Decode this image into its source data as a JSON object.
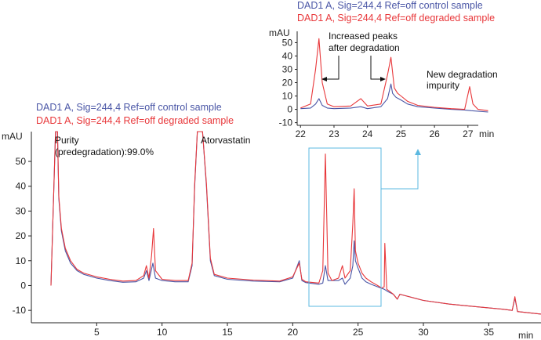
{
  "colors": {
    "control": "#4a56a6",
    "degraded": "#e8373a",
    "zoom_box": "#5bb8e0",
    "axis": "#222222"
  },
  "chart_data": [
    {
      "type": "line",
      "xlabel": "min",
      "ylabel": "mAU",
      "xlim": [
        0,
        39
      ],
      "ylim": [
        -15,
        62
      ],
      "x_ticks": [
        "5",
        "10",
        "15",
        "20",
        "25",
        "30",
        "35"
      ],
      "y_ticks": [
        "-10",
        "0",
        "10",
        "20",
        "30",
        "40",
        "50"
      ],
      "legend": [
        "DAD1 A, Sig=244,4 Ref=off control sample",
        "DAD1 A, Sig=244,4 Ref=off degraded sample"
      ],
      "annotations": {
        "purity_line1": "Purity",
        "purity_line2": "(predegradation):99.0%",
        "main_peak": "Atorvastatin"
      },
      "series": [
        {
          "name": "DAD1 A, Sig=244,4 Ref=off control sample",
          "points": [
            [
              1.5,
              0
            ],
            [
              1.85,
              62
            ],
            [
              2.0,
              62
            ],
            [
              2.1,
              35
            ],
            [
              2.3,
              22
            ],
            [
              2.6,
              14
            ],
            [
              3.0,
              9
            ],
            [
              3.5,
              6
            ],
            [
              4.0,
              4.5
            ],
            [
              5.0,
              3
            ],
            [
              6.0,
              2
            ],
            [
              7.0,
              1.3
            ],
            [
              8.0,
              1.5
            ],
            [
              8.6,
              3
            ],
            [
              8.8,
              6
            ],
            [
              9.0,
              2
            ],
            [
              9.3,
              9
            ],
            [
              9.5,
              3
            ],
            [
              10.0,
              2
            ],
            [
              11.0,
              1.5
            ],
            [
              12.0,
              1.5
            ],
            [
              12.3,
              8
            ],
            [
              12.5,
              40
            ],
            [
              12.7,
              62
            ],
            [
              13.1,
              62
            ],
            [
              13.4,
              40
            ],
            [
              13.7,
              10
            ],
            [
              14.0,
              4
            ],
            [
              15.0,
              2.5
            ],
            [
              17.0,
              1.8
            ],
            [
              19.0,
              1.5
            ],
            [
              20.0,
              3
            ],
            [
              20.5,
              10
            ],
            [
              20.7,
              2
            ],
            [
              21.0,
              1.2
            ],
            [
              22.0,
              0.5
            ],
            [
              22.3,
              1
            ],
            [
              22.5,
              8
            ],
            [
              22.7,
              2
            ],
            [
              23.5,
              2
            ],
            [
              23.8,
              3
            ],
            [
              24.0,
              0.5
            ],
            [
              24.4,
              3
            ],
            [
              24.6,
              8
            ],
            [
              24.7,
              18
            ],
            [
              24.8,
              10
            ],
            [
              25.0,
              7
            ],
            [
              25.3,
              3
            ],
            [
              25.6,
              1.5
            ],
            [
              26.0,
              0.5
            ],
            [
              26.5,
              -0.5
            ],
            [
              27.0,
              -1.5
            ],
            [
              27.3,
              -2.5
            ],
            [
              27.7,
              -3.5
            ],
            [
              28.0,
              -5.5
            ],
            [
              28.2,
              -3.5
            ],
            [
              30.0,
              -6
            ],
            [
              32.0,
              -7.5
            ],
            [
              34.0,
              -8.5
            ],
            [
              36.0,
              -9.5
            ],
            [
              36.8,
              -10
            ],
            [
              37.0,
              -5
            ],
            [
              37.2,
              -10.5
            ],
            [
              39.0,
              -11.5
            ]
          ]
        },
        {
          "name": "DAD1 A, Sig=244,4 Ref=off degraded sample",
          "points": [
            [
              1.5,
              0
            ],
            [
              1.85,
              62
            ],
            [
              2.0,
              62
            ],
            [
              2.1,
              36
            ],
            [
              2.3,
              23
            ],
            [
              2.6,
              15
            ],
            [
              3.0,
              10
            ],
            [
              3.5,
              6.5
            ],
            [
              4.0,
              5
            ],
            [
              5.0,
              3.5
            ],
            [
              6.0,
              2.5
            ],
            [
              7.0,
              1.8
            ],
            [
              8.0,
              2
            ],
            [
              8.6,
              4
            ],
            [
              8.8,
              8
            ],
            [
              9.0,
              3
            ],
            [
              9.2,
              12
            ],
            [
              9.35,
              23
            ],
            [
              9.5,
              6
            ],
            [
              10.0,
              2.5
            ],
            [
              11.0,
              2
            ],
            [
              12.0,
              2
            ],
            [
              12.3,
              9
            ],
            [
              12.5,
              41
            ],
            [
              12.7,
              62
            ],
            [
              13.1,
              62
            ],
            [
              13.4,
              41
            ],
            [
              13.7,
              11
            ],
            [
              14.0,
              4.5
            ],
            [
              15.0,
              3
            ],
            [
              17.0,
              2.2
            ],
            [
              19.0,
              1.8
            ],
            [
              20.0,
              3.5
            ],
            [
              20.5,
              9
            ],
            [
              20.7,
              2.5
            ],
            [
              21.0,
              1.5
            ],
            [
              22.0,
              1
            ],
            [
              22.3,
              6
            ],
            [
              22.5,
              53
            ],
            [
              22.7,
              5
            ],
            [
              23.0,
              2
            ],
            [
              23.5,
              3
            ],
            [
              23.8,
              8
            ],
            [
              24.0,
              3
            ],
            [
              24.4,
              6
            ],
            [
              24.6,
              25
            ],
            [
              24.7,
              39
            ],
            [
              24.8,
              14
            ],
            [
              25.0,
              9
            ],
            [
              25.3,
              5
            ],
            [
              25.6,
              3
            ],
            [
              26.0,
              1.5
            ],
            [
              26.5,
              0
            ],
            [
              26.8,
              -1
            ],
            [
              27.0,
              -0.5
            ],
            [
              27.05,
              17
            ],
            [
              27.2,
              -1.5
            ],
            [
              27.7,
              -3.5
            ],
            [
              28.0,
              -5.5
            ],
            [
              28.2,
              -3.5
            ],
            [
              30.0,
              -6
            ],
            [
              32.0,
              -7.5
            ],
            [
              34.0,
              -8.5
            ],
            [
              36.0,
              -9.5
            ],
            [
              36.8,
              -10
            ],
            [
              37.0,
              -4.5
            ],
            [
              37.2,
              -10.5
            ],
            [
              39.0,
              -11.5
            ]
          ]
        }
      ]
    },
    {
      "type": "line",
      "xlabel": "min",
      "ylabel": "mAU",
      "xlim": [
        21.9,
        27.8
      ],
      "ylim": [
        -12,
        62
      ],
      "x_ticks": [
        "22",
        "23",
        "24",
        "25",
        "26",
        "27"
      ],
      "y_ticks": [
        "-10",
        "0",
        "10",
        "20",
        "30",
        "40",
        "50"
      ],
      "legend": [
        "DAD1 A, Sig=244,4 Ref=off control sample",
        "DAD1 A, Sig=244,4 Ref=off degraded sample"
      ],
      "annotations": {
        "increased_line1": "Increased peaks",
        "increased_line2": "after degradation",
        "new_line1": "New degradation",
        "new_line2": "impurity"
      },
      "series": [
        {
          "name": "DAD1 A, Sig=244,4 Ref=off control sample",
          "points": [
            [
              22.0,
              0.5
            ],
            [
              22.3,
              1
            ],
            [
              22.45,
              4
            ],
            [
              22.55,
              8
            ],
            [
              22.65,
              3
            ],
            [
              22.8,
              1
            ],
            [
              23.0,
              0.5
            ],
            [
              23.5,
              1
            ],
            [
              23.8,
              2
            ],
            [
              24.0,
              0.5
            ],
            [
              24.4,
              2
            ],
            [
              24.6,
              8
            ],
            [
              24.7,
              19
            ],
            [
              24.75,
              12
            ],
            [
              24.85,
              9
            ],
            [
              25.0,
              7
            ],
            [
              25.2,
              4
            ],
            [
              25.5,
              2
            ],
            [
              26.0,
              1
            ],
            [
              26.5,
              0
            ],
            [
              26.9,
              -0.5
            ],
            [
              27.1,
              -1
            ],
            [
              27.6,
              -2
            ]
          ]
        },
        {
          "name": "DAD1 A, Sig=244,4 Ref=off degraded sample",
          "points": [
            [
              22.0,
              1
            ],
            [
              22.3,
              4
            ],
            [
              22.45,
              30
            ],
            [
              22.55,
              53
            ],
            [
              22.65,
              20
            ],
            [
              22.8,
              4
            ],
            [
              23.0,
              2
            ],
            [
              23.5,
              2.5
            ],
            [
              23.8,
              8
            ],
            [
              24.0,
              2.5
            ],
            [
              24.4,
              4
            ],
            [
              24.6,
              26
            ],
            [
              24.7,
              39
            ],
            [
              24.8,
              16
            ],
            [
              24.9,
              12
            ],
            [
              25.0,
              10
            ],
            [
              25.2,
              6
            ],
            [
              25.5,
              3
            ],
            [
              26.0,
              1.5
            ],
            [
              26.5,
              0.5
            ],
            [
              26.9,
              0
            ],
            [
              27.05,
              17
            ],
            [
              27.15,
              4
            ],
            [
              27.3,
              0
            ],
            [
              27.6,
              -1
            ]
          ]
        }
      ]
    }
  ]
}
